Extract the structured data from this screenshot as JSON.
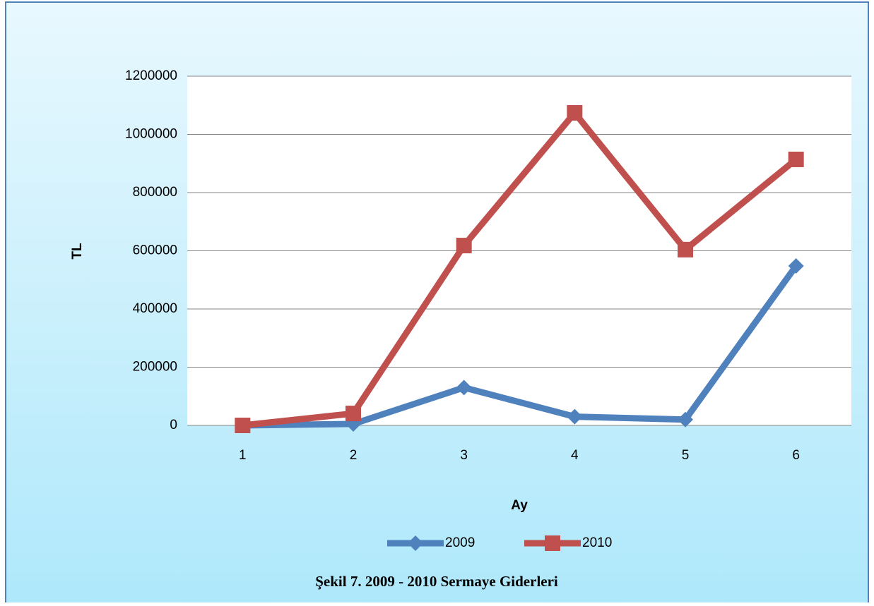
{
  "chart_data": {
    "type": "line",
    "title": "Şekil 7. 2009 - 2010 Sermaye Giderleri",
    "x_label": "Ay",
    "y_label": "TL",
    "categories": [
      "1",
      "2",
      "3",
      "4",
      "5",
      "6"
    ],
    "series": [
      {
        "name": "2009",
        "color": "#4f81bd",
        "marker": "diamond",
        "values": [
          0,
          5000,
          130000,
          30000,
          20000,
          548000
        ]
      },
      {
        "name": "2010",
        "color": "#c0504d",
        "marker": "square",
        "values": [
          0,
          41000,
          618000,
          1074000,
          604000,
          914000
        ]
      }
    ],
    "ylim": [
      0,
      1200000
    ],
    "yticks": [
      0,
      200000,
      400000,
      600000,
      800000,
      1000000,
      1200000
    ],
    "grid": true,
    "legend": "bottom"
  }
}
